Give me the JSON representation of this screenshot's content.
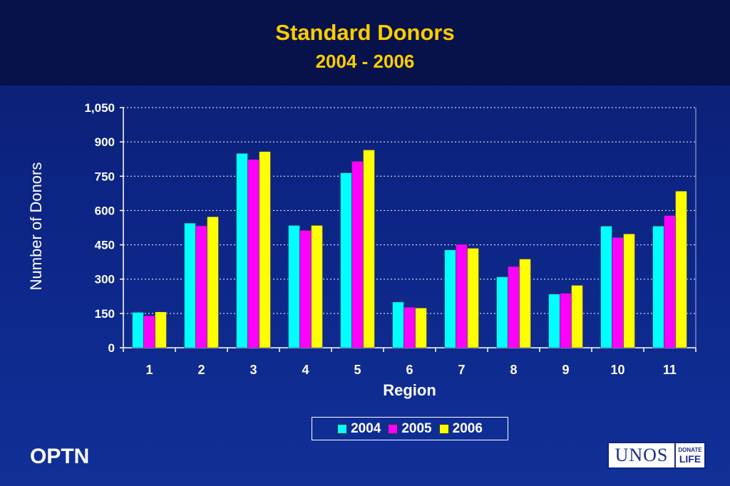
{
  "chart_data": {
    "type": "bar",
    "title": "Standard Donors",
    "subtitle": "2004 - 2006",
    "xlabel": "Region",
    "ylabel": "Number of Donors",
    "categories": [
      "1",
      "2",
      "3",
      "4",
      "5",
      "6",
      "7",
      "8",
      "9",
      "10",
      "11"
    ],
    "ylim": [
      0,
      1050
    ],
    "yticks": [
      0,
      150,
      300,
      450,
      600,
      750,
      900,
      1050
    ],
    "ytick_labels": [
      "0",
      "150",
      "300",
      "450",
      "600",
      "750",
      "900",
      "1,050"
    ],
    "grid": true,
    "legend_position": "bottom",
    "series": [
      {
        "name": "2004",
        "color": "#00ffff",
        "values": [
          155,
          545,
          850,
          535,
          765,
          200,
          428,
          310,
          235,
          532,
          532
        ]
      },
      {
        "name": "2005",
        "color": "#ff00ff",
        "values": [
          140,
          533,
          823,
          513,
          815,
          177,
          452,
          355,
          238,
          482,
          578
        ]
      },
      {
        "name": "2006",
        "color": "#ffff00",
        "values": [
          157,
          573,
          858,
          535,
          865,
          174,
          435,
          388,
          273,
          498,
          685
        ]
      }
    ]
  },
  "footer": {
    "org": "OPTN",
    "logo_text": "UNOS",
    "logo_badge_top": "DONATE",
    "logo_badge_bottom": "LIFE"
  }
}
